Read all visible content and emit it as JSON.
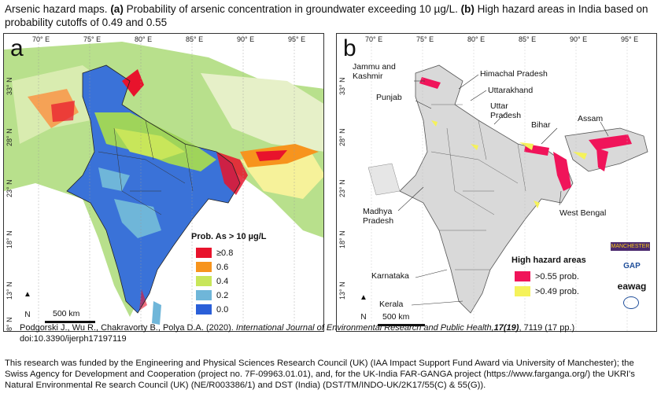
{
  "title": {
    "part1": "Arsenic hazard maps. ",
    "a_marker": "(a)",
    "part2": " Probability of arsenic concentration in groundwater exceeding 10 µg/L. ",
    "b_marker": "(b)",
    "part3": " High hazard areas in India based on probability cutoffs of 0.49 and 0.55"
  },
  "panel_a": {
    "label": "a",
    "longitudes": [
      "70° E",
      "75° E",
      "80° E",
      "85° E",
      "90° E",
      "95° E"
    ],
    "latitudes": [
      "33° N",
      "28° N",
      "23° N",
      "18° N",
      "13° N",
      "8° N"
    ],
    "legend_title": "Prob. As > 10 µg/L",
    "legend": [
      {
        "label": "≥0.8",
        "color": "#e8132c"
      },
      {
        "label": "0.6",
        "color": "#f7941d"
      },
      {
        "label": "0.4",
        "color": "#c8e65a"
      },
      {
        "label": "0.2",
        "color": "#6fb6d9"
      },
      {
        "label": "0.0",
        "color": "#2a5fd8"
      }
    ],
    "scale_label": "500 km",
    "north_label": "N"
  },
  "panel_b": {
    "label": "b",
    "longitudes": [
      "70° E",
      "75° E",
      "80° E",
      "85° E",
      "90° E",
      "95° E"
    ],
    "latitudes": [
      "33° N",
      "28° N",
      "23° N",
      "18° N",
      "13° N"
    ],
    "states": {
      "jammu": "Jammu and Kashmir",
      "himachal": "Himachal Pradesh",
      "punjab": "Punjab",
      "uttarakhand": "Uttarakhand",
      "uttar": "Uttar Pradesh",
      "bihar": "Bihar",
      "assam": "Assam",
      "madhya": "Madhya Pradesh",
      "westbengal": "West Bengal",
      "karnataka": "Karnataka",
      "kerala": "Kerala"
    },
    "legend_title": "High hazard areas",
    "legend": [
      {
        "label": ">0.55 prob.",
        "color": "#f0145a"
      },
      {
        "label": ">0.49 prob.",
        "color": "#f5f25a"
      }
    ],
    "scale_label": "500 km",
    "north_label": "N",
    "logos": {
      "manchester": "MANCHESTER",
      "gap": "GAP",
      "eawag": "eawag"
    }
  },
  "citation": {
    "authors": "Podgorski J., Wu R., Chakravorty B., Polya D.A. (2020). ",
    "journal": "International Journal of Environmental Research and Public Health,",
    "volume": "17(19)",
    "pages": ", 7119 (17 pp.)",
    "doi": "doi:10.3390/ijerph17197119"
  },
  "funding": "This research was funded by the Engineering and Physical Sciences Research Council (UK) (IAA Impact Support Fund Award via University of Manchester); the Swiss Agency for Development and Cooperation (project no. 7F-09963.01.01), and, for the UK-India FAR-GANGA project (https://www.farganga.org/) the UKRI's Natural Environmental Re search Council (UK) (NE/R003386/1) and DST (India) (DST/TM/INDO-UK/2K17/55(C) & 55(G))."
}
